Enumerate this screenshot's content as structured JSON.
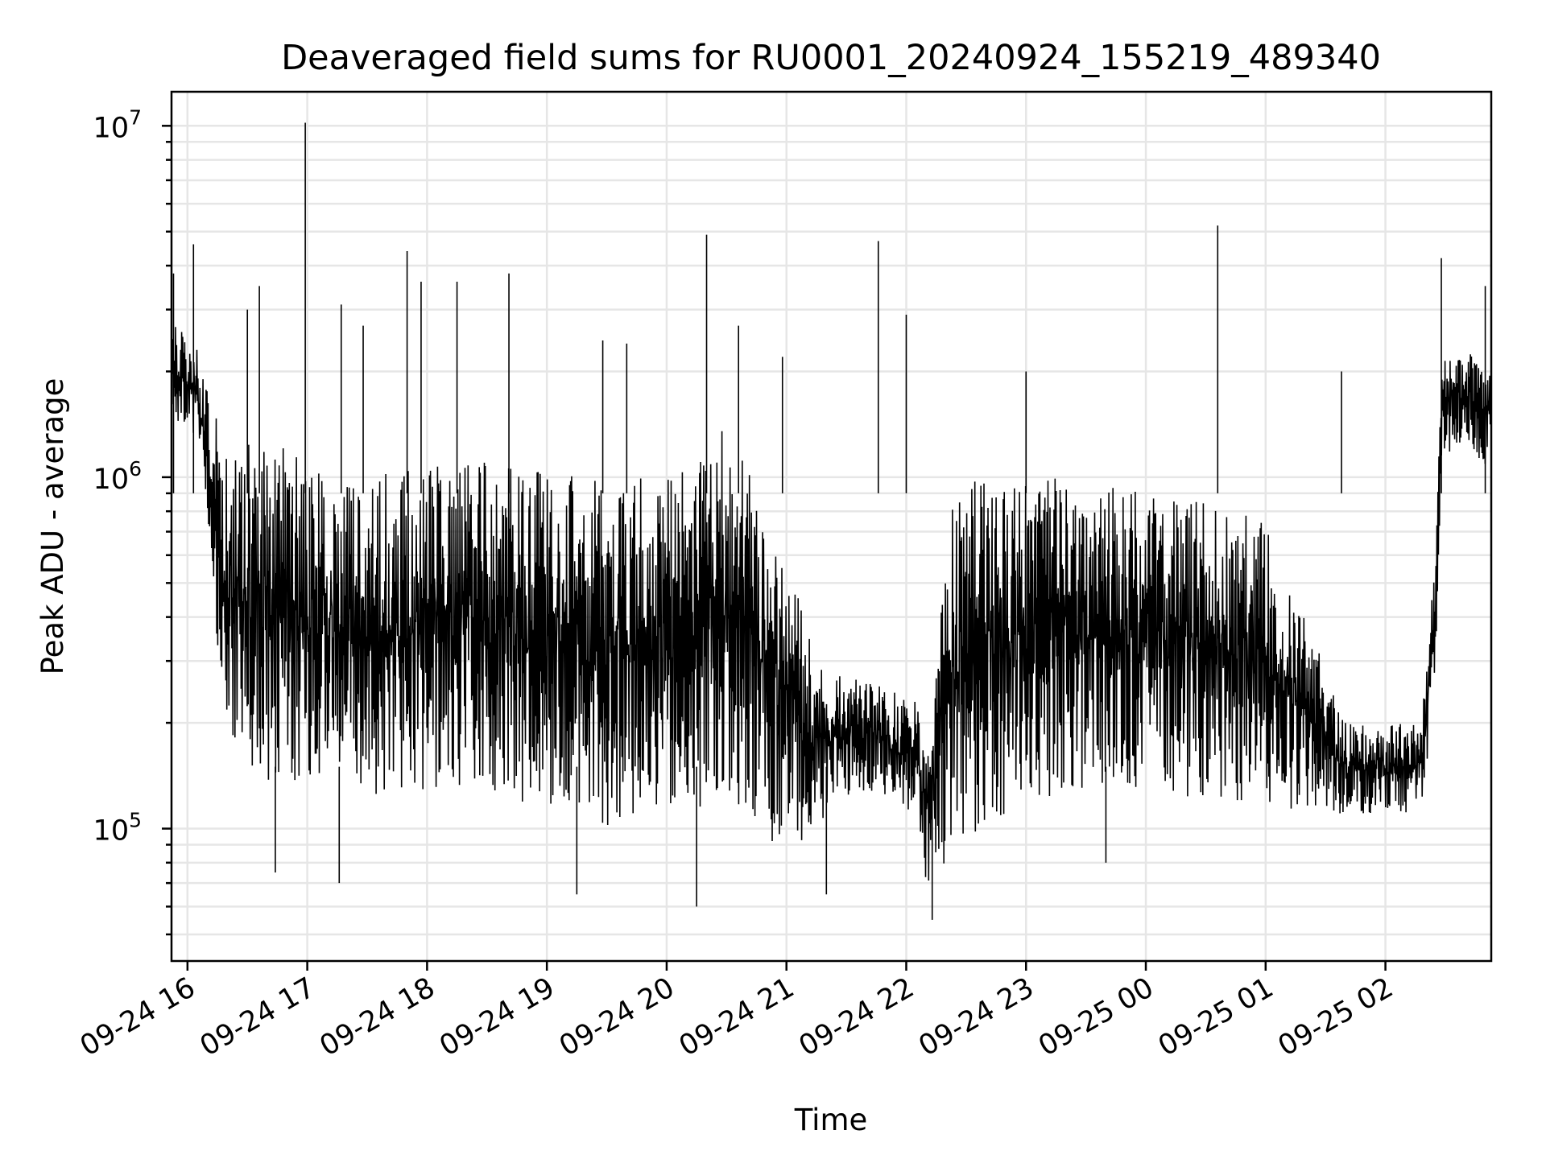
{
  "chart_data": {
    "type": "line",
    "title": "Deaveraged field sums for RU0001_20240924_155219_489340",
    "xlabel": "Time",
    "ylabel": "Peak ADU - average",
    "yscale": "log",
    "ylim": [
      42000,
      12500000
    ],
    "xlim": [
      "2024-09-24T15:52:00",
      "2024-09-25T02:53:00"
    ],
    "grid": true,
    "x_ticks": [
      {
        "value": "2024-09-24T16:00",
        "label": "09-24 16"
      },
      {
        "value": "2024-09-24T17:00",
        "label": "09-24 17"
      },
      {
        "value": "2024-09-24T18:00",
        "label": "09-24 18"
      },
      {
        "value": "2024-09-24T19:00",
        "label": "09-24 19"
      },
      {
        "value": "2024-09-24T20:00",
        "label": "09-24 20"
      },
      {
        "value": "2024-09-24T21:00",
        "label": "09-24 21"
      },
      {
        "value": "2024-09-24T22:00",
        "label": "09-24 22"
      },
      {
        "value": "2024-09-24T23:00",
        "label": "09-24 23"
      },
      {
        "value": "2024-09-25T00:00",
        "label": "09-25 00"
      },
      {
        "value": "2024-09-25T01:00",
        "label": "09-25 01"
      },
      {
        "value": "2024-09-25T02:00",
        "label": "09-25 02"
      }
    ],
    "y_ticks": [
      {
        "value": 100000,
        "base": "10",
        "exp": "5"
      },
      {
        "value": 1000000,
        "base": "10",
        "exp": "6"
      },
      {
        "value": 10000000,
        "base": "10",
        "exp": "7"
      }
    ],
    "envelope": [
      {
        "t": "2024-09-24T15:52",
        "lo": 1500000,
        "hi": 2800000
      },
      {
        "t": "2024-09-24T16:05",
        "lo": 1300000,
        "hi": 2300000
      },
      {
        "t": "2024-09-24T16:12",
        "lo": 600000,
        "hi": 1600000
      },
      {
        "t": "2024-09-24T16:18",
        "lo": 180000,
        "hi": 1300000
      },
      {
        "t": "2024-09-24T16:40",
        "lo": 130000,
        "hi": 1300000
      },
      {
        "t": "2024-09-24T17:00",
        "lo": 140000,
        "hi": 1100000
      },
      {
        "t": "2024-09-24T17:30",
        "lo": 120000,
        "hi": 1000000
      },
      {
        "t": "2024-09-24T18:00",
        "lo": 130000,
        "hi": 1100000
      },
      {
        "t": "2024-09-24T18:30",
        "lo": 130000,
        "hi": 1100000
      },
      {
        "t": "2024-09-24T19:00",
        "lo": 110000,
        "hi": 1050000
      },
      {
        "t": "2024-09-24T19:30",
        "lo": 100000,
        "hi": 1000000
      },
      {
        "t": "2024-09-24T20:00",
        "lo": 110000,
        "hi": 1000000
      },
      {
        "t": "2024-09-24T20:30",
        "lo": 120000,
        "hi": 1500000
      },
      {
        "t": "2024-09-24T20:45",
        "lo": 100000,
        "hi": 900000
      },
      {
        "t": "2024-09-24T21:05",
        "lo": 80000,
        "hi": 500000
      },
      {
        "t": "2024-09-24T21:15",
        "lo": 100000,
        "hi": 300000
      },
      {
        "t": "2024-09-24T21:40",
        "lo": 130000,
        "hi": 260000
      },
      {
        "t": "2024-09-24T22:05",
        "lo": 110000,
        "hi": 240000
      },
      {
        "t": "2024-09-24T22:10",
        "lo": 70000,
        "hi": 160000
      },
      {
        "t": "2024-09-24T22:20",
        "lo": 80000,
        "hi": 600000
      },
      {
        "t": "2024-09-24T22:25",
        "lo": 90000,
        "hi": 1000000
      },
      {
        "t": "2024-09-24T22:50",
        "lo": 110000,
        "hi": 1000000
      },
      {
        "t": "2024-09-24T23:30",
        "lo": 130000,
        "hi": 1000000
      },
      {
        "t": "2024-09-25T00:00",
        "lo": 130000,
        "hi": 900000
      },
      {
        "t": "2024-09-25T00:30",
        "lo": 120000,
        "hi": 850000
      },
      {
        "t": "2024-09-25T01:00",
        "lo": 120000,
        "hi": 750000
      },
      {
        "t": "2024-09-25T01:20",
        "lo": 110000,
        "hi": 400000
      },
      {
        "t": "2024-09-25T01:40",
        "lo": 110000,
        "hi": 200000
      },
      {
        "t": "2024-09-25T02:18",
        "lo": 110000,
        "hi": 200000
      },
      {
        "t": "2024-09-25T02:25",
        "lo": 250000,
        "hi": 600000
      },
      {
        "t": "2024-09-25T02:28",
        "lo": 1100000,
        "hi": 2200000
      },
      {
        "t": "2024-09-25T02:40",
        "lo": 1300000,
        "hi": 2300000
      },
      {
        "t": "2024-09-25T02:53",
        "lo": 1000000,
        "hi": 2000000
      }
    ],
    "spikes": [
      {
        "t": "2024-09-24T15:53",
        "value": 3800000
      },
      {
        "t": "2024-09-24T16:03",
        "value": 4600000
      },
      {
        "t": "2024-09-24T16:30",
        "value": 3000000
      },
      {
        "t": "2024-09-24T16:36",
        "value": 3500000
      },
      {
        "t": "2024-09-24T16:59",
        "value": 10200000
      },
      {
        "t": "2024-09-24T17:17",
        "value": 3100000
      },
      {
        "t": "2024-09-24T17:28",
        "value": 2700000
      },
      {
        "t": "2024-09-24T17:50",
        "value": 4400000
      },
      {
        "t": "2024-09-24T17:57",
        "value": 3600000
      },
      {
        "t": "2024-09-24T18:15",
        "value": 3600000
      },
      {
        "t": "2024-09-24T18:41",
        "value": 3800000
      },
      {
        "t": "2024-09-24T19:28",
        "value": 2450000
      },
      {
        "t": "2024-09-24T19:40",
        "value": 2400000
      },
      {
        "t": "2024-09-24T20:20",
        "value": 4900000
      },
      {
        "t": "2024-09-24T20:36",
        "value": 2700000
      },
      {
        "t": "2024-09-24T20:58",
        "value": 2200000
      },
      {
        "t": "2024-09-24T21:46",
        "value": 4700000
      },
      {
        "t": "2024-09-24T22:00",
        "value": 2900000
      },
      {
        "t": "2024-09-24T23:00",
        "value": 2000000
      },
      {
        "t": "2024-09-25T00:36",
        "value": 5200000
      },
      {
        "t": "2024-09-25T01:38",
        "value": 2000000
      },
      {
        "t": "2024-09-25T02:28",
        "value": 4200000
      },
      {
        "t": "2024-09-25T02:50",
        "value": 3500000
      }
    ],
    "dips": [
      {
        "t": "2024-09-24T16:44",
        "value": 75000
      },
      {
        "t": "2024-09-24T17:16",
        "value": 70000
      },
      {
        "t": "2024-09-24T19:15",
        "value": 65000
      },
      {
        "t": "2024-09-24T20:15",
        "value": 60000
      },
      {
        "t": "2024-09-24T21:20",
        "value": 65000
      },
      {
        "t": "2024-09-24T22:13",
        "value": 55000
      },
      {
        "t": "2024-09-24T23:40",
        "value": 80000
      }
    ]
  }
}
